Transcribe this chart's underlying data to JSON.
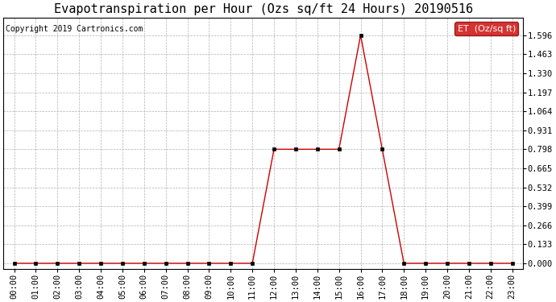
{
  "title": "Evapotranspiration per Hour (Ozs sq/ft 24 Hours) 20190516",
  "copyright": "Copyright 2019 Cartronics.com",
  "legend_label": "ET  (Oz/sq ft)",
  "line_color": "#cc0000",
  "marker_color": "#000000",
  "background_color": "#ffffff",
  "grid_color": "#aaaaaa",
  "hours": [
    0,
    1,
    2,
    3,
    4,
    5,
    6,
    7,
    8,
    9,
    10,
    11,
    12,
    13,
    14,
    15,
    16,
    17,
    18,
    19,
    20,
    21,
    22,
    23
  ],
  "values": [
    0.0,
    0.0,
    0.0,
    0.0,
    0.0,
    0.0,
    0.0,
    0.0,
    0.0,
    0.0,
    0.0,
    0.0,
    0.798,
    0.798,
    0.798,
    0.798,
    1.596,
    0.798,
    0.0,
    0.0,
    0.0,
    0.0,
    0.0,
    0.0
  ],
  "yticks": [
    0.0,
    0.133,
    0.266,
    0.399,
    0.532,
    0.665,
    0.798,
    0.931,
    1.064,
    1.197,
    1.33,
    1.463,
    1.596
  ],
  "ylim": [
    -0.04,
    1.72
  ],
  "xlim": [
    -0.5,
    23.5
  ],
  "title_fontsize": 11,
  "copyright_fontsize": 7,
  "legend_fontsize": 8,
  "tick_fontsize": 7.5
}
